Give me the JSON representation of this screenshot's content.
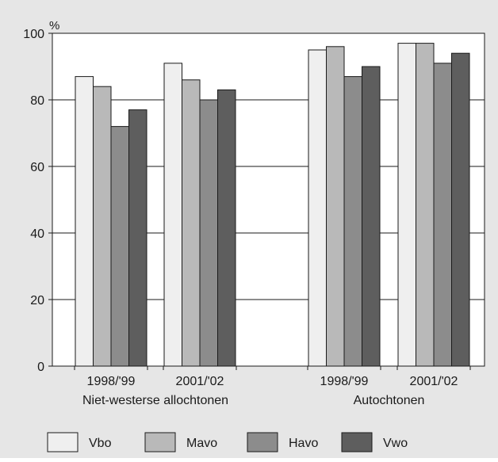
{
  "chart_data": {
    "type": "bar",
    "unit_label": "%",
    "ylim": [
      0,
      100
    ],
    "yticks": [
      0,
      20,
      40,
      60,
      80,
      100
    ],
    "grid": true,
    "legend_position": "bottom",
    "groups": [
      {
        "label": "Niet-westerse allochtonen",
        "periods": [
          {
            "label": "1998/'99",
            "values": [
              87,
              84,
              72,
              77
            ]
          },
          {
            "label": "2001/'02",
            "values": [
              91,
              86,
              80,
              83
            ]
          }
        ]
      },
      {
        "label": "Autochtonen",
        "periods": [
          {
            "label": "1998/'99",
            "values": [
              95,
              96,
              87,
              90
            ]
          },
          {
            "label": "2001/'02",
            "values": [
              97,
              97,
              91,
              94
            ]
          }
        ]
      }
    ],
    "series": [
      {
        "name": "Vbo",
        "color": "#efefef"
      },
      {
        "name": "Mavo",
        "color": "#b9b9b9"
      },
      {
        "name": "Havo",
        "color": "#8c8c8c"
      },
      {
        "name": "Vwo",
        "color": "#5e5e5e"
      }
    ]
  }
}
